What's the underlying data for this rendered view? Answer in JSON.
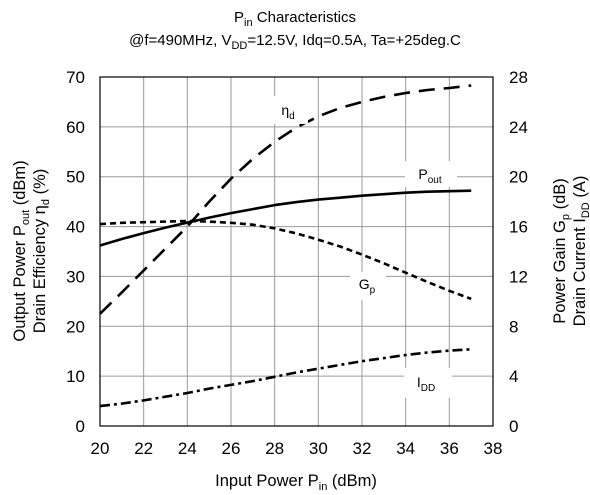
{
  "chart_data": {
    "type": "line",
    "title": {
      "line1_main": "P",
      "line1_sub": "in",
      "line1_rest": " Characteristics",
      "line2_a": "@f=490MHz, V",
      "line2_sub": "DD",
      "line2_b": "=12.5V, Idq=0.5A, Ta=+25deg.C"
    },
    "xlabel": {
      "main": "Input Power  P",
      "sub": "in",
      "rest": " (dBm)"
    },
    "ylabel_left": {
      "line1_a": "Output Power P",
      "line1_sub": "out",
      "line1_b": " (dBm)",
      "line2_a": "Drain Efficiency  η",
      "line2_sub": "d",
      "line2_b": " (%)"
    },
    "ylabel_right": {
      "line1_a": "Power Gain  G",
      "line1_sub": "p",
      "line1_b": " (dB)",
      "line2_a": "Drain Current  I",
      "line2_sub": "DD",
      "line2_b": " (A)"
    },
    "xlim": [
      20,
      38
    ],
    "ylim_left": [
      0,
      70
    ],
    "ylim_right": [
      0,
      28
    ],
    "x_ticks": [
      "20",
      "22",
      "24",
      "26",
      "28",
      "30",
      "32",
      "34",
      "36",
      "38"
    ],
    "y_left_ticks": [
      "0",
      "10",
      "20",
      "30",
      "40",
      "50",
      "60",
      "70"
    ],
    "y_right_ticks": [
      "0",
      "4",
      "8",
      "12",
      "16",
      "20",
      "24",
      "28"
    ],
    "grid": true,
    "series": [
      {
        "name": "P",
        "name_sub": "out",
        "axis": "left",
        "dash": "solid",
        "x": [
          20,
          21,
          22,
          23,
          24,
          25,
          26,
          27,
          28,
          29,
          30,
          31,
          32,
          33,
          34,
          35,
          36,
          37
        ],
        "y": [
          36.2,
          37.5,
          38.7,
          39.8,
          40.8,
          41.8,
          42.7,
          43.5,
          44.3,
          44.9,
          45.4,
          45.8,
          46.2,
          46.5,
          46.8,
          47.0,
          47.1,
          47.2
        ]
      },
      {
        "name": "η",
        "name_sub": "d",
        "axis": "left",
        "dash": "longdash",
        "x": [
          20,
          21,
          22,
          23,
          24,
          25,
          26,
          27,
          28,
          29,
          30,
          31,
          32,
          33,
          34,
          35,
          36,
          37
        ],
        "y": [
          22.5,
          26.8,
          31.2,
          35.6,
          40.0,
          45.0,
          49.6,
          53.6,
          57.0,
          59.9,
          62.1,
          63.8,
          65.0,
          66.0,
          66.8,
          67.4,
          67.8,
          68.3
        ]
      },
      {
        "name": "G",
        "name_sub": "p",
        "axis": "right",
        "dash": "shortdash",
        "x": [
          20,
          21,
          22,
          23,
          24,
          25,
          26,
          27,
          28,
          29,
          30,
          31,
          32,
          33,
          34,
          35,
          36,
          37
        ],
        "y": [
          16.2,
          16.3,
          16.35,
          16.4,
          16.45,
          16.4,
          16.3,
          16.15,
          15.85,
          15.45,
          14.95,
          14.4,
          13.75,
          13.05,
          12.3,
          11.55,
          10.85,
          10.2
        ]
      },
      {
        "name": "I",
        "name_sub": "DD",
        "axis": "right",
        "dash": "dashdot",
        "x": [
          20,
          21,
          22,
          23,
          24,
          25,
          26,
          27,
          28,
          29,
          30,
          31,
          32,
          33,
          34,
          35,
          36,
          37
        ],
        "y": [
          1.6,
          1.8,
          2.05,
          2.35,
          2.65,
          3.0,
          3.3,
          3.6,
          3.95,
          4.3,
          4.6,
          4.9,
          5.2,
          5.45,
          5.7,
          5.9,
          6.05,
          6.15
        ]
      }
    ]
  }
}
